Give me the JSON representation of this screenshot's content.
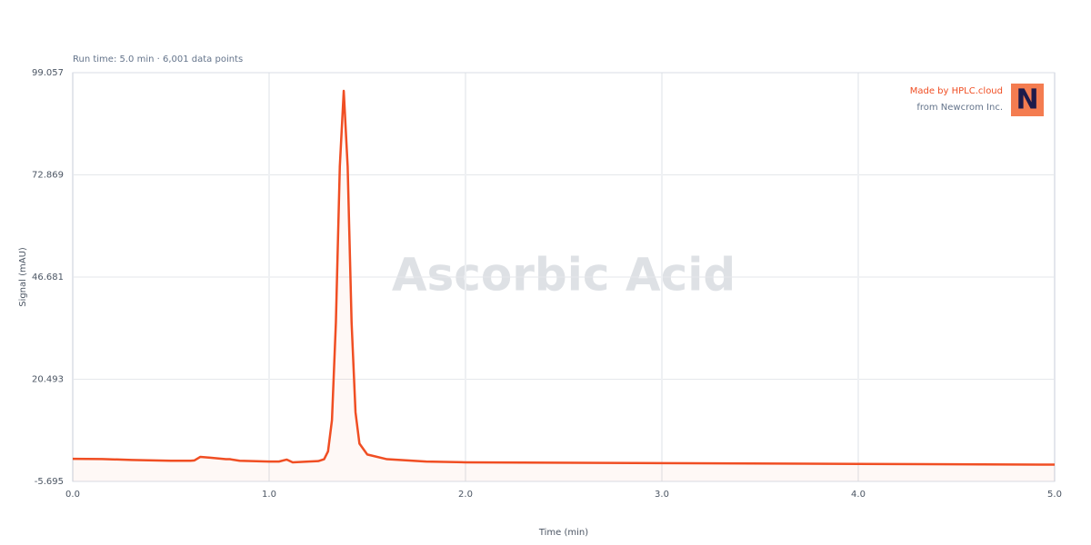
{
  "chart_data": {
    "type": "line",
    "subtitle": "Run time: 5.0 min · 6,001 data points",
    "watermark": "Ascorbic Acid",
    "x_label": "Time (min)",
    "y_label": "Signal (mAU)",
    "brand": {
      "made_by": "Made by HPLC.cloud",
      "from": "from Newcrom Inc.",
      "logo": "N"
    },
    "color": "#f04e23",
    "grid": true,
    "x": [
      0,
      0.15,
      0.3,
      0.5,
      0.6,
      0.62,
      0.65,
      0.7,
      0.78,
      0.8,
      0.85,
      1.0,
      1.05,
      1.09,
      1.12,
      1.2,
      1.25,
      1.28,
      1.3,
      1.32,
      1.34,
      1.36,
      1.38,
      1.4,
      1.42,
      1.44,
      1.46,
      1.5,
      1.6,
      1.8,
      2.0,
      3.0,
      4.0,
      5.0
    ],
    "values": [
      0.1,
      0.05,
      -0.2,
      -0.4,
      -0.4,
      -0.3,
      0.6,
      0.4,
      0.0,
      0.0,
      -0.4,
      -0.6,
      -0.6,
      -0.1,
      -0.8,
      -0.6,
      -0.5,
      0.0,
      2,
      10,
      35,
      75,
      94.4,
      75,
      35,
      12,
      4,
      1.2,
      0.0,
      -0.6,
      -0.8,
      -1.0,
      -1.2,
      -1.4
    ],
    "xlim": [
      0,
      5
    ],
    "xticks": [
      {
        "value": 0,
        "label": "0.0"
      },
      {
        "value": 1,
        "label": "1.0"
      },
      {
        "value": 2,
        "label": "2.0"
      },
      {
        "value": 3,
        "label": "3.0"
      },
      {
        "value": 4,
        "label": "4.0"
      },
      {
        "value": 5,
        "label": "5.0"
      }
    ],
    "ylim": [
      -5.695,
      99.057
    ],
    "yticks": [
      -5.695,
      20.493,
      46.681,
      72.869,
      99.057
    ]
  }
}
